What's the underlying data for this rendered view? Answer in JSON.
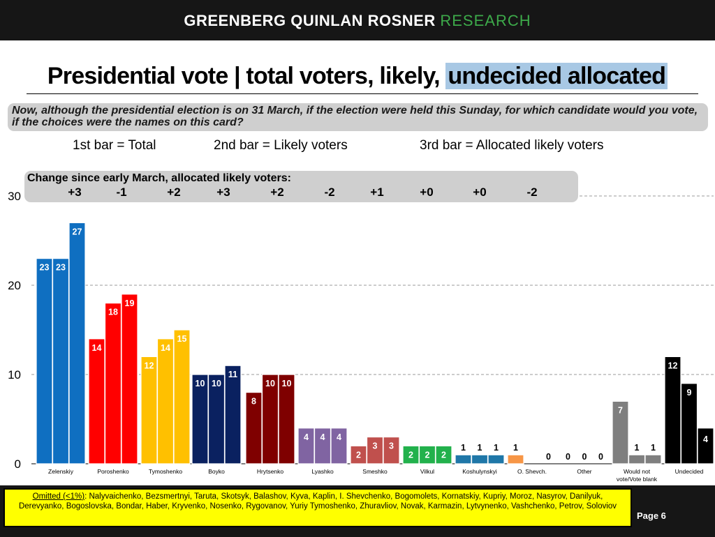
{
  "header": {
    "brand_main": "GREENBERG QUINLAN ROSNER",
    "brand_accent": "RESEARCH"
  },
  "title": {
    "main": "Presidential vote | total voters, likely, ",
    "highlight": "undecided allocated"
  },
  "question": "Now, although the presidential election is on 31 March, if the election were held this Sunday, for which candidate would you vote, if the choices were the names on this card?",
  "bar_legend": [
    "1st bar = Total",
    "2nd bar = Likely voters",
    "3rd bar = Allocated likely voters"
  ],
  "change": {
    "title": "Change since early March, allocated likely voters:",
    "values": [
      "+3",
      "-1",
      "+2",
      "+3",
      "+2",
      "-2",
      "+1",
      "+0",
      "+0",
      "-2"
    ]
  },
  "chart_data": {
    "type": "bar",
    "categories": [
      "Zelenskiy",
      "Poroshenko",
      "Tymoshenko",
      "Boyko",
      "Hrytsenko",
      "Lyashko",
      "Smeshko",
      "Vilkul",
      "Koshulynskyi",
      "O. Shevch.",
      "Other",
      "Would not vote/Vote blank",
      "Undecided"
    ],
    "series": [
      {
        "name": "Total",
        "values": [
          23,
          14,
          12,
          10,
          8,
          4,
          2,
          2,
          1,
          1,
          0,
          7,
          12
        ]
      },
      {
        "name": "Likely voters",
        "values": [
          23,
          18,
          14,
          10,
          10,
          4,
          3,
          2,
          1,
          null,
          0,
          1,
          9
        ]
      },
      {
        "name": "Allocated likely voters",
        "values": [
          27,
          19,
          15,
          11,
          10,
          4,
          3,
          2,
          1,
          0,
          0,
          1,
          4
        ]
      }
    ],
    "colors": {
      "Zelenskiy": "#0f6fc1",
      "Poroshenko": "#ff0000",
      "Tymoshenko": "#ffc000",
      "Boyko": "#0a2160",
      "Hrytsenko": "#7f0000",
      "Lyashko": "#8064a2",
      "Smeshko": "#c0504d",
      "Vilkul": "#22b14c",
      "Koshulynskyi": "#1f77a8",
      "O. Shevch.": "#f79646",
      "Other": "#7f7f7f",
      "Would not vote/Vote blank": "#7f7f7f",
      "Undecided": "#000000"
    },
    "y_ticks": [
      0,
      10,
      20,
      30
    ],
    "ylim": [
      0,
      30
    ],
    "grid": true
  },
  "footer": {
    "omitted_label": "Omitted (<1%)",
    "omitted_text": ": Nalyvaichenko, Bezsmertnyi, Taruta, Skotsyk, Balashov, Kyva, Kaplin, I. Shevchenko, Bogomolets, Kornatskiy, Kupriy, Moroz, Nasyrov, Danilyuk, Derevyanko, Bogoslovska, Bondar, Haber, Kryvenko, Nosenko, Rygovanov, Yuriy Tymoshenko, Zhuravliov, Novak, Karmazin, Lytvynenko, Vashchenko, Petrov, Soloviov",
    "page": "Page 6"
  }
}
